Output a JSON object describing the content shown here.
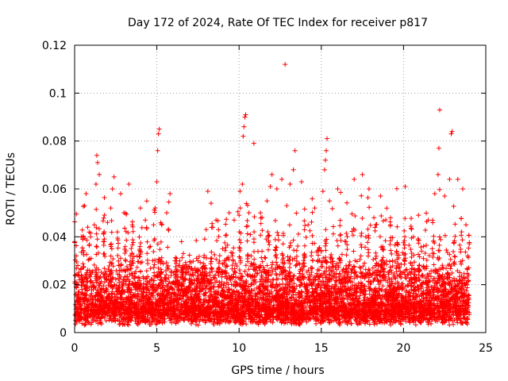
{
  "chart_data": {
    "type": "scatter",
    "title": "Day 172 of 2024, Rate Of TEC Index for receiver p817",
    "xlabel": "GPS time / hours",
    "ylabel": "ROTI / TECUs",
    "xlim": [
      0,
      25
    ],
    "ylim": [
      0,
      0.12
    ],
    "x_ticks": [
      0,
      5,
      10,
      15,
      20,
      25
    ],
    "x_tick_labels": [
      "0",
      "5",
      "10",
      "15",
      "20",
      "25"
    ],
    "y_ticks": [
      0,
      0.02,
      0.04,
      0.06,
      0.08,
      0.1,
      0.12
    ],
    "y_tick_labels": [
      "0",
      "0.02",
      "0.04",
      "0.06",
      "0.08",
      "0.1",
      "0.12"
    ],
    "grid": true,
    "marker": "+",
    "series_color": "#ff0000",
    "series": [
      {
        "name": "ROTI",
        "points": [
          [
            0.1,
            0.016
          ],
          [
            0.2,
            0.028
          ],
          [
            0.3,
            0.022
          ],
          [
            0.4,
            0.04
          ],
          [
            0.5,
            0.039
          ],
          [
            0.6,
            0.053
          ],
          [
            0.7,
            0.058
          ],
          [
            0.8,
            0.044
          ],
          [
            1.0,
            0.031
          ],
          [
            1.2,
            0.045
          ],
          [
            1.3,
            0.062
          ],
          [
            1.35,
            0.074
          ],
          [
            1.4,
            0.071
          ],
          [
            1.5,
            0.066
          ],
          [
            1.8,
            0.038
          ],
          [
            2.0,
            0.046
          ],
          [
            2.2,
            0.052
          ],
          [
            2.3,
            0.06
          ],
          [
            2.4,
            0.065
          ],
          [
            2.6,
            0.042
          ],
          [
            2.8,
            0.058
          ],
          [
            3.0,
            0.05
          ],
          [
            3.3,
            0.062
          ],
          [
            3.5,
            0.045
          ],
          [
            3.8,
            0.032
          ],
          [
            4.0,
            0.052
          ],
          [
            4.3,
            0.047
          ],
          [
            4.6,
            0.036
          ],
          [
            4.8,
            0.045
          ],
          [
            4.9,
            0.052
          ],
          [
            5.0,
            0.063
          ],
          [
            5.05,
            0.076
          ],
          [
            5.1,
            0.083
          ],
          [
            5.15,
            0.085
          ],
          [
            5.3,
            0.045
          ],
          [
            5.6,
            0.05
          ],
          [
            5.8,
            0.058
          ],
          [
            6.2,
            0.03
          ],
          [
            6.5,
            0.038
          ],
          [
            7.0,
            0.024
          ],
          [
            7.5,
            0.03
          ],
          [
            8.0,
            0.043
          ],
          [
            8.1,
            0.059
          ],
          [
            8.3,
            0.054
          ],
          [
            8.6,
            0.047
          ],
          [
            9.0,
            0.035
          ],
          [
            9.4,
            0.05
          ],
          [
            9.7,
            0.047
          ],
          [
            10.0,
            0.049
          ],
          [
            10.2,
            0.062
          ],
          [
            10.25,
            0.082
          ],
          [
            10.3,
            0.086
          ],
          [
            10.35,
            0.09
          ],
          [
            10.4,
            0.091
          ],
          [
            10.6,
            0.05
          ],
          [
            10.9,
            0.079
          ],
          [
            11.3,
            0.05
          ],
          [
            11.7,
            0.055
          ],
          [
            11.9,
            0.061
          ],
          [
            12.0,
            0.066
          ],
          [
            12.3,
            0.06
          ],
          [
            12.6,
            0.064
          ],
          [
            12.8,
            0.112
          ],
          [
            12.9,
            0.053
          ],
          [
            13.1,
            0.062
          ],
          [
            13.3,
            0.068
          ],
          [
            13.4,
            0.076
          ],
          [
            13.8,
            0.063
          ],
          [
            14.2,
            0.045
          ],
          [
            14.6,
            0.052
          ],
          [
            15.1,
            0.059
          ],
          [
            15.2,
            0.068
          ],
          [
            15.25,
            0.072
          ],
          [
            15.3,
            0.076
          ],
          [
            15.35,
            0.081
          ],
          [
            15.5,
            0.055
          ],
          [
            16.0,
            0.06
          ],
          [
            16.5,
            0.038
          ],
          [
            17.0,
            0.064
          ],
          [
            17.5,
            0.066
          ],
          [
            17.9,
            0.06
          ],
          [
            18.2,
            0.048
          ],
          [
            18.6,
            0.057
          ],
          [
            19.2,
            0.045
          ],
          [
            19.6,
            0.037
          ],
          [
            20.1,
            0.061
          ],
          [
            20.6,
            0.04
          ],
          [
            21.1,
            0.034
          ],
          [
            21.5,
            0.047
          ],
          [
            21.9,
            0.058
          ],
          [
            22.1,
            0.066
          ],
          [
            22.15,
            0.077
          ],
          [
            22.2,
            0.093
          ],
          [
            22.5,
            0.057
          ],
          [
            22.8,
            0.064
          ],
          [
            22.9,
            0.083
          ],
          [
            22.95,
            0.084
          ],
          [
            23.3,
            0.064
          ],
          [
            23.6,
            0.06
          ],
          [
            23.8,
            0.045
          ],
          [
            23.9,
            0.032
          ]
        ]
      }
    ]
  }
}
